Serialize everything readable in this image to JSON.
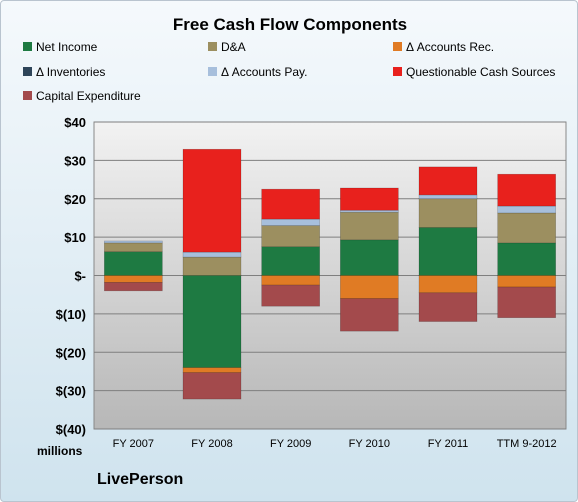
{
  "chart_data": {
    "type": "bar",
    "stacked": true,
    "title": "Free Cash Flow Components",
    "units_label": "millions",
    "brand": "LivePerson",
    "categories": [
      "FY 2007",
      "FY 2008",
      "FY 2009",
      "FY 2010",
      "FY 2011",
      "TTM 9-2012"
    ],
    "ylim": [
      -40,
      40
    ],
    "yticks": [
      {
        "value": 40,
        "label": "$40"
      },
      {
        "value": 30,
        "label": "$30"
      },
      {
        "value": 20,
        "label": "$20"
      },
      {
        "value": 10,
        "label": "$10"
      },
      {
        "value": 0,
        "label": "$-"
      },
      {
        "value": -10,
        "label": "$(10)"
      },
      {
        "value": -20,
        "label": "$(20)"
      },
      {
        "value": -30,
        "label": "$(30)"
      },
      {
        "value": -40,
        "label": "$(40)"
      }
    ],
    "grid": true,
    "legend_position": "top",
    "series": [
      {
        "name": "Net Income",
        "color": "#1e7a42",
        "values": [
          6.2,
          -24,
          7.5,
          9.3,
          12.5,
          8.5
        ]
      },
      {
        "name": "D&A",
        "color": "#9c8f60",
        "values": [
          2.3,
          4.8,
          5.5,
          7.2,
          7.5,
          7.8
        ]
      },
      {
        "name": "Δ Accounts Rec.",
        "color": "#e07b24",
        "values": [
          -1.8,
          -1.3,
          -2.5,
          -6.0,
          -4.5,
          -3.0
        ]
      },
      {
        "name": "Δ Inventories",
        "color": "#2e4559",
        "values": [
          0,
          0,
          0,
          0,
          0,
          0
        ]
      },
      {
        "name": "Δ Accounts Pay.",
        "color": "#a7bfdc",
        "values": [
          0.5,
          1.3,
          1.7,
          0.5,
          1.0,
          1.8
        ]
      },
      {
        "name": "Questionable Cash Sources",
        "color": "#e8211d",
        "values": [
          0,
          26.8,
          7.8,
          5.8,
          7.3,
          8.3
        ]
      },
      {
        "name": "Capital Expenditure",
        "color": "#a34a4c",
        "values": [
          -2.2,
          -6.9,
          -5.5,
          -8.5,
          -7.5,
          -8.0
        ]
      }
    ]
  }
}
